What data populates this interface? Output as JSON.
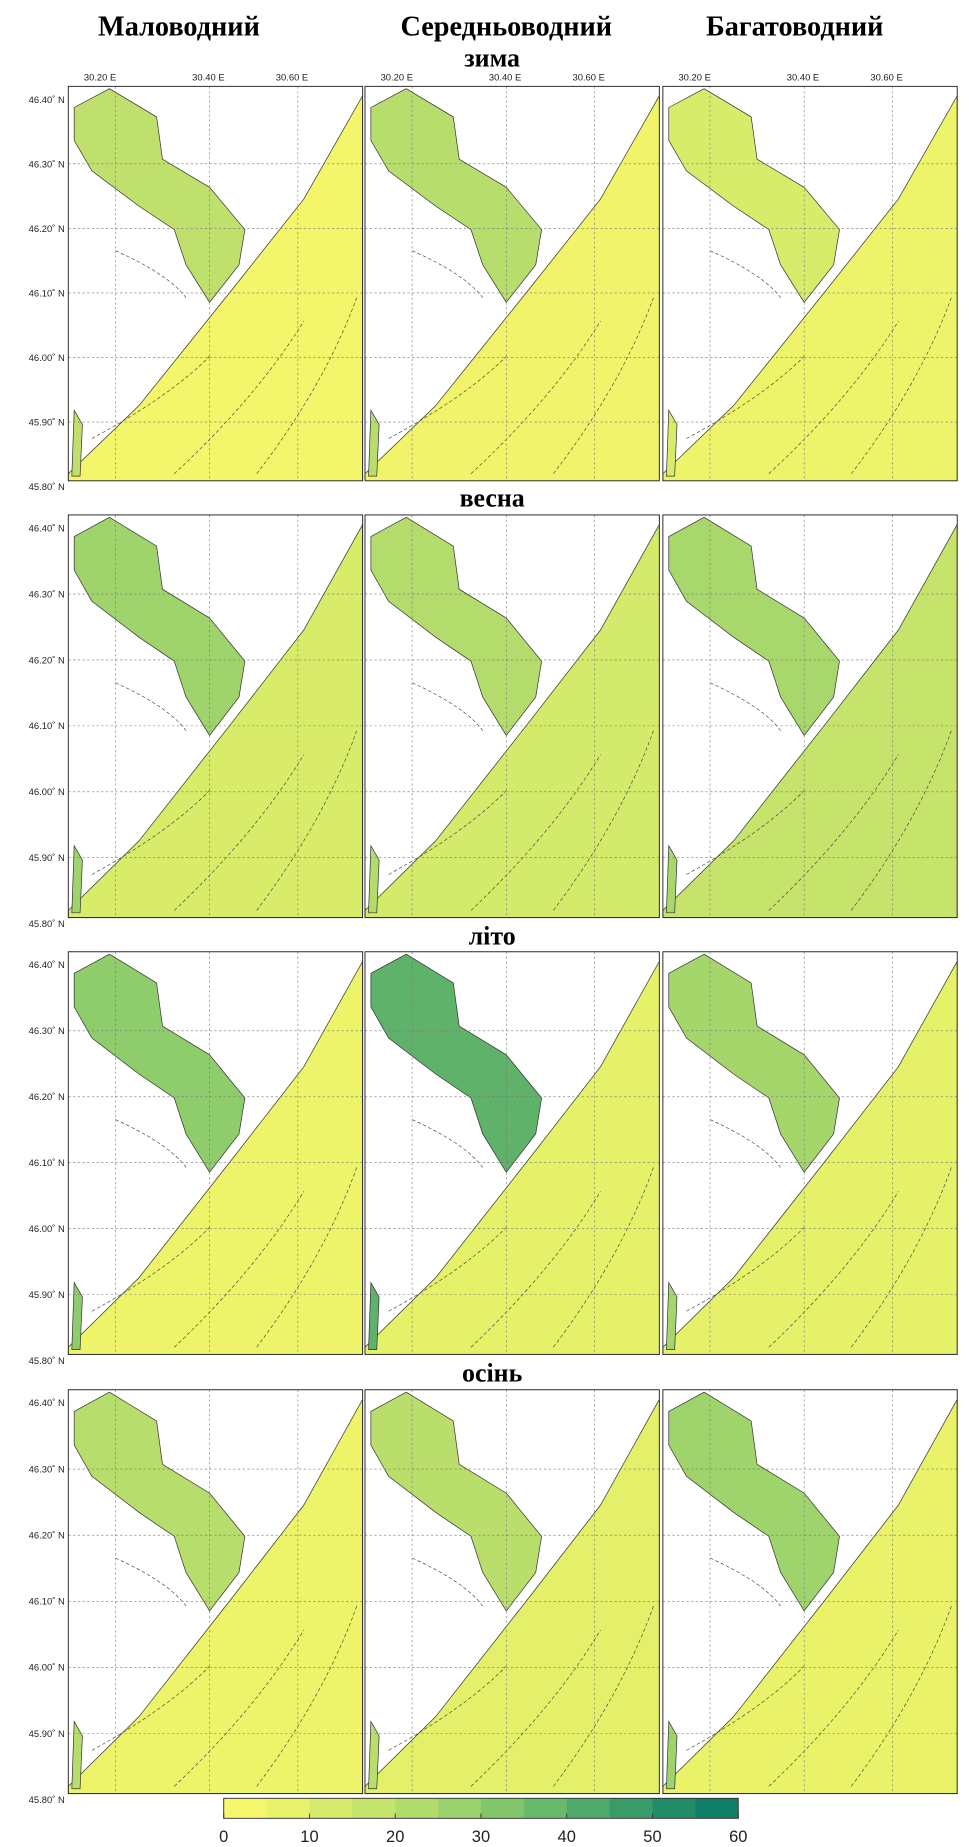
{
  "columns": [
    "Маловодний",
    "Середньоводний",
    "Багатоводний"
  ],
  "seasons": [
    "зима",
    "весна",
    "літо",
    "осінь"
  ],
  "lat_labels": [
    "46.40˚ N",
    "46.30˚ N",
    "46.20˚ N",
    "46.10˚ N",
    "46.00˚ N",
    "45.90˚ N",
    "45.80˚ N"
  ],
  "lon_labels": [
    "30.20  E",
    "30.40  E",
    "30.60  E"
  ],
  "colorbar": {
    "ticks": [
      0,
      10,
      20,
      30,
      40,
      50,
      60
    ],
    "lim": [
      0,
      60
    ],
    "colors": [
      "#f6f76a",
      "#e8f26a",
      "#d6eb6b",
      "#c4e46c",
      "#b0dc6c",
      "#9ad26c",
      "#82c66b",
      "#69b96a",
      "#50aa69",
      "#389b68",
      "#228c68",
      "#0f7e67"
    ]
  }
}
